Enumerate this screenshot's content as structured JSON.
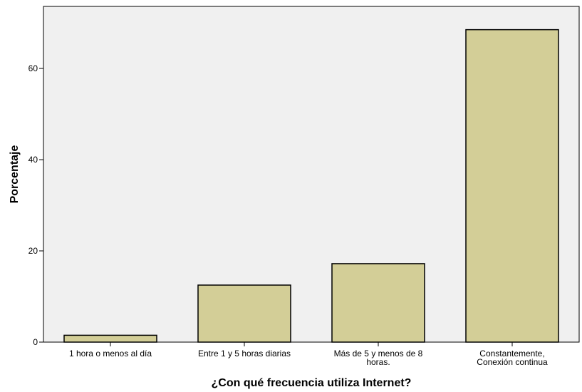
{
  "chart_data": {
    "type": "bar",
    "title": "",
    "xlabel": "¿Con qué frecuencia utiliza Internet?",
    "ylabel": "Porcentaje",
    "categories": [
      [
        "1 hora o menos al día"
      ],
      [
        "Entre 1 y 5 horas diarias"
      ],
      [
        "Más de 5 y menos de 8",
        "horas."
      ],
      [
        "Constantemente,",
        "Conexión continua"
      ]
    ],
    "values": [
      1.5,
      12.5,
      17.2,
      68.5
    ],
    "ylim": [
      0,
      73.6
    ],
    "yticks": [
      0,
      20,
      40,
      60
    ],
    "grid": false,
    "legend": "none",
    "colors": {
      "plot_background": "#f0f0f0",
      "bar_fill": "#d3ce97",
      "bar_stroke": "#000000"
    }
  }
}
